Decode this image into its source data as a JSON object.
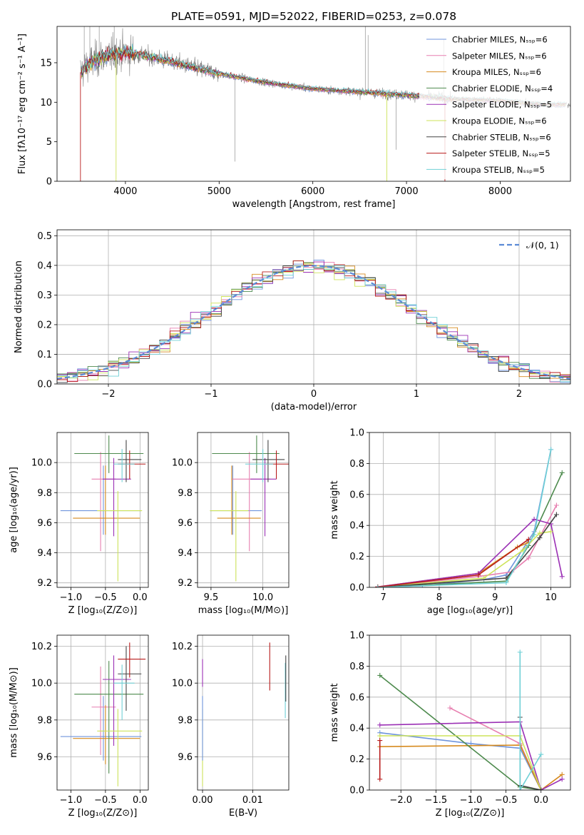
{
  "figure_title": "PLATE=0591, MJD=52022, FIBERID=0253, z=0.078",
  "colors": {
    "chab_miles": "#6f94dc",
    "salp_miles": "#e77fb0",
    "krou_miles": "#d68a1e",
    "chab_elodie": "#4d8a4d",
    "salp_elodie": "#9b30b5",
    "krou_elodie": "#cde35a",
    "chab_stelib": "#444444",
    "salp_stelib": "#b81c1c",
    "krou_stelib": "#6fd0d6",
    "data": "#808080",
    "norm": "#5a8ad6"
  },
  "chart_data": [
    {
      "id": "spectrum",
      "type": "line",
      "title": "PLATE=0591, MJD=52022, FIBERID=0253, z=0.078",
      "xlabel": "wavelength [Angstrom, rest frame]",
      "ylabel": "Flux [fλ10⁻¹⁷ erg cm⁻² s⁻¹ A⁻¹]",
      "xlim": [
        3270,
        8750
      ],
      "ylim": [
        0,
        19.6
      ],
      "xticks": [
        4000,
        5000,
        6000,
        7000,
        8000
      ],
      "yticks": [
        0,
        5,
        10,
        15
      ],
      "grid": false,
      "legend": "top-right",
      "legend_entries": [
        "Chabrier MILES, Nₛₛₚ=6",
        "Salpeter MILES, Nₛₛₚ=6",
        "Kroupa MILES, Nₛₛₚ=6",
        "Chabrier ELODIE, Nₛₛₚ=4",
        "Salpeter ELODIE, Nₛₛₚ=5",
        "Kroupa ELODIE, Nₛₛₚ=6",
        "Chabrier STELIB, Nₛₛₚ=6",
        "Salpeter STELIB, Nₛₛₚ=5",
        "Kroupa STELIB, Nₛₛₚ=5"
      ],
      "continuum": {
        "x": [
          3520,
          3600,
          3700,
          3800,
          3900,
          4000,
          4200,
          4500,
          5000,
          5500,
          6000,
          6500,
          7000,
          7500,
          8000,
          8500
        ],
        "y": [
          13.8,
          14.8,
          15.4,
          15.9,
          16.1,
          16.3,
          15.9,
          15.1,
          13.6,
          12.5,
          11.7,
          11.3,
          10.9,
          10.4,
          10.2,
          9.7
        ]
      }
    },
    {
      "id": "residual_hist",
      "type": "bar",
      "xlabel": "(data-model)/error",
      "ylabel": "Normed distribution",
      "xlim": [
        -2.5,
        2.5
      ],
      "ylim": [
        0,
        0.52
      ],
      "xticks": [
        -2,
        -1,
        0,
        1,
        2
      ],
      "yticks": [
        0.0,
        0.1,
        0.2,
        0.3,
        0.4,
        0.5
      ],
      "grid": true,
      "legend": "top-right",
      "legend_entries": [
        "𝒩(0, 1)"
      ]
    },
    {
      "id": "age_vs_z",
      "type": "scatter",
      "xlabel": "Z [log₁₀(Z/Z⊙)]",
      "ylabel": "age  [log₁₀(age/yr)]",
      "xlim": [
        -1.2,
        0.12
      ],
      "ylim": [
        9.17,
        10.2
      ],
      "xticks": [
        -1.0,
        -0.5,
        0.0
      ],
      "yticks": [
        9.2,
        9.4,
        9.6,
        9.8,
        10.0
      ],
      "grid": true,
      "points": [
        {
          "model": "chab_miles",
          "x": -0.53,
          "xerr": [
            0.62,
            0.55
          ],
          "y": 9.68,
          "yerr": [
            0.16,
            0.3
          ]
        },
        {
          "model": "salp_miles",
          "x": -0.57,
          "xerr": [
            0.13,
            0.22
          ],
          "y": 9.89,
          "yerr": [
            0.48,
            0.18
          ]
        },
        {
          "model": "krou_miles",
          "x": -0.5,
          "xerr": [
            0.47,
            0.5
          ],
          "y": 9.63,
          "yerr": [
            0.11,
            0.35
          ]
        },
        {
          "model": "chab_elodie",
          "x": -0.45,
          "xerr": [
            0.5,
            0.5
          ],
          "y": 10.06,
          "yerr": [
            0.13,
            0.12
          ]
        },
        {
          "model": "salp_elodie",
          "x": -0.38,
          "xerr": [
            0.16,
            0.25
          ],
          "y": 9.89,
          "yerr": [
            0.38,
            0.14
          ]
        },
        {
          "model": "krou_elodie",
          "x": -0.32,
          "xerr": [
            0.3,
            0.35
          ],
          "y": 9.68,
          "yerr": [
            0.47,
            0.13
          ]
        },
        {
          "model": "chab_stelib",
          "x": -0.2,
          "xerr": [
            0.12,
            0.22
          ],
          "y": 10.02,
          "yerr": [
            0.15,
            0.13
          ]
        },
        {
          "model": "salp_stelib",
          "x": -0.15,
          "xerr": [
            0.17,
            0.23
          ],
          "y": 9.99,
          "yerr": [
            0.1,
            0.09
          ]
        },
        {
          "model": "krou_stelib",
          "x": -0.26,
          "xerr": [
            0.12,
            0.18
          ],
          "y": 9.99,
          "yerr": [
            0.12,
            0.1
          ]
        }
      ]
    },
    {
      "id": "age_vs_mass",
      "type": "scatter",
      "xlabel": "mass [log₁₀(M/M⊙)]",
      "ylabel": "",
      "xlim": [
        9.37,
        10.25
      ],
      "ylim": [
        9.17,
        10.2
      ],
      "xticks": [
        9.5,
        10.0
      ],
      "yticks": [
        9.2,
        9.4,
        9.6,
        9.8,
        10.0
      ],
      "grid": true,
      "points": [
        {
          "model": "chab_miles",
          "x": 9.71,
          "xerr": [
            0.22,
            0.28
          ],
          "y": 9.68,
          "yerr": [
            0.16,
            0.3
          ]
        },
        {
          "model": "salp_miles",
          "x": 9.87,
          "xerr": [
            0.17,
            0.2
          ],
          "y": 9.89,
          "yerr": [
            0.48,
            0.18
          ]
        },
        {
          "model": "krou_miles",
          "x": 9.7,
          "xerr": [
            0.14,
            0.28
          ],
          "y": 9.63,
          "yerr": [
            0.11,
            0.35
          ]
        },
        {
          "model": "chab_elodie",
          "x": 9.94,
          "xerr": [
            0.43,
            0.22
          ],
          "y": 10.06,
          "yerr": [
            0.13,
            0.12
          ]
        },
        {
          "model": "salp_elodie",
          "x": 10.02,
          "xerr": [
            0.14,
            0.11
          ],
          "y": 9.89,
          "yerr": [
            0.38,
            0.14
          ]
        },
        {
          "model": "krou_elodie",
          "x": 9.74,
          "xerr": [
            0.25,
            0.12
          ],
          "y": 9.68,
          "yerr": [
            0.47,
            0.13
          ]
        },
        {
          "model": "chab_stelib",
          "x": 10.05,
          "xerr": [
            0.15,
            0.16
          ],
          "y": 10.02,
          "yerr": [
            0.15,
            0.13
          ]
        },
        {
          "model": "salp_stelib",
          "x": 10.13,
          "xerr": [
            0.1,
            0.12
          ],
          "y": 9.99,
          "yerr": [
            0.1,
            0.09
          ]
        },
        {
          "model": "krou_stelib",
          "x": 10.0,
          "xerr": [
            0.17,
            0.1
          ],
          "y": 9.99,
          "yerr": [
            0.12,
            0.1
          ]
        }
      ]
    },
    {
      "id": "weight_vs_age",
      "type": "line",
      "xlabel": "age  [log₁₀(age/yr)]",
      "ylabel": "mass weight",
      "xlim": [
        6.75,
        10.35
      ],
      "ylim": [
        0,
        1.0
      ],
      "xticks": [
        7,
        8,
        9,
        10
      ],
      "yticks": [
        0.0,
        0.2,
        0.4,
        0.6,
        0.8,
        1.0
      ],
      "grid": true,
      "series": [
        {
          "model": "chab_miles",
          "x": [
            6.9,
            7.7,
            8.8,
            9.2,
            9.7,
            10.0
          ],
          "y": [
            0.002,
            0.01,
            0.05,
            0.08,
            0.36,
            0.89
          ]
        },
        {
          "model": "salp_miles",
          "x": [
            6.9,
            8.7,
            9.3,
            9.6,
            10.1
          ],
          "y": [
            0.002,
            0.07,
            0.1,
            0.19,
            0.53
          ]
        },
        {
          "model": "krou_miles",
          "x": [
            6.9,
            8.7,
            9.4,
            9.6
          ],
          "y": [
            0.003,
            0.09,
            0.26,
            0.29
          ]
        },
        {
          "model": "chab_elodie",
          "x": [
            6.9,
            9.2,
            9.6,
            10.2
          ],
          "y": [
            0.0,
            0.04,
            0.27,
            0.74
          ]
        },
        {
          "model": "salp_elodie",
          "x": [
            6.9,
            8.7,
            9.7,
            10.0,
            10.2
          ],
          "y": [
            0.003,
            0.09,
            0.44,
            0.41,
            0.07
          ]
        },
        {
          "model": "krou_elodie",
          "x": [
            6.9,
            8.8,
            9.5,
            9.8,
            10.0
          ],
          "y": [
            0.002,
            0.06,
            0.24,
            0.35,
            0.36
          ]
        },
        {
          "model": "chab_stelib",
          "x": [
            6.9,
            9.2,
            9.8,
            10.1
          ],
          "y": [
            0.0,
            0.06,
            0.32,
            0.47
          ]
        },
        {
          "model": "salp_stelib",
          "x": [
            6.9,
            8.7,
            9.6
          ],
          "y": [
            0.002,
            0.08,
            0.31
          ]
        },
        {
          "model": "krou_stelib",
          "x": [
            6.9,
            9.2,
            9.7,
            10.0
          ],
          "y": [
            0.0,
            0.03,
            0.34,
            0.89
          ]
        }
      ]
    },
    {
      "id": "mass_vs_z",
      "type": "scatter",
      "xlabel": "Z [log₁₀(Z/Z⊙)]",
      "ylabel": "mass [log₁₀(M/M⊙)]",
      "xlim": [
        -1.2,
        0.12
      ],
      "ylim": [
        9.42,
        10.26
      ],
      "xticks": [
        -1.0,
        -0.5,
        0.0
      ],
      "yticks": [
        9.6,
        9.8,
        10.0,
        10.2
      ],
      "grid": true,
      "points": [
        {
          "model": "chab_miles",
          "x": -0.53,
          "xerr": [
            0.62,
            0.55
          ],
          "y": 9.71,
          "yerr": [
            0.13,
            0.22
          ]
        },
        {
          "model": "salp_miles",
          "x": -0.57,
          "xerr": [
            0.13,
            0.22
          ],
          "y": 9.87,
          "yerr": [
            0.26,
            0.22
          ]
        },
        {
          "model": "krou_miles",
          "x": -0.5,
          "xerr": [
            0.47,
            0.5
          ],
          "y": 9.7,
          "yerr": [
            0.14,
            0.18
          ]
        },
        {
          "model": "chab_elodie",
          "x": -0.45,
          "xerr": [
            0.5,
            0.5
          ],
          "y": 9.94,
          "yerr": [
            0.43,
            0.18
          ]
        },
        {
          "model": "salp_elodie",
          "x": -0.38,
          "xerr": [
            0.16,
            0.25
          ],
          "y": 10.02,
          "yerr": [
            0.36,
            0.13
          ]
        },
        {
          "model": "krou_elodie",
          "x": -0.32,
          "xerr": [
            0.3,
            0.35
          ],
          "y": 9.74,
          "yerr": [
            0.3,
            0.12
          ]
        },
        {
          "model": "chab_stelib",
          "x": -0.2,
          "xerr": [
            0.12,
            0.22
          ],
          "y": 10.05,
          "yerr": [
            0.2,
            0.15
          ]
        },
        {
          "model": "salp_stelib",
          "x": -0.15,
          "xerr": [
            0.17,
            0.23
          ],
          "y": 10.13,
          "yerr": [
            0.1,
            0.09
          ]
        },
        {
          "model": "krou_stelib",
          "x": -0.26,
          "xerr": [
            0.12,
            0.18
          ],
          "y": 10.0,
          "yerr": [
            0.2,
            0.1
          ]
        }
      ]
    },
    {
      "id": "mass_vs_ebv",
      "type": "scatter",
      "xlabel": "E(B-V)",
      "ylabel": "",
      "xlim": [
        -0.001,
        0.0172
      ],
      "ylim": [
        9.42,
        10.26
      ],
      "xticks": [
        0.0,
        0.01
      ],
      "yticks": [
        9.6,
        9.8,
        10.0,
        10.2
      ],
      "grid": true,
      "points": [
        {
          "model": "krou_elodie",
          "x": 0.0,
          "y": 9.74,
          "yerr": [
            0.3,
            0.12
          ]
        },
        {
          "model": "salp_elodie",
          "x": 0.0,
          "y": 10.04,
          "yerr": [
            0.06,
            0.09
          ]
        },
        {
          "model": "chab_miles",
          "x": 0.0,
          "y": 9.71,
          "yerr": [
            0.13,
            0.22
          ]
        },
        {
          "model": "salp_stelib",
          "x": 0.0134,
          "y": 10.09,
          "yerr": [
            0.13,
            0.13
          ]
        },
        {
          "model": "krou_stelib",
          "x": 0.0165,
          "y": 9.96,
          "yerr": [
            0.15,
            0.15
          ]
        },
        {
          "model": "chab_stelib",
          "x": 0.0166,
          "y": 10.03,
          "yerr": [
            0.13,
            0.12
          ]
        }
      ]
    },
    {
      "id": "weight_vs_z",
      "type": "line",
      "xlabel": "Z [log₁₀(Z/Z⊙)]",
      "ylabel": "mass weight",
      "xlim": [
        -2.45,
        0.42
      ],
      "ylim": [
        0,
        1.0
      ],
      "xticks": [
        -2.0,
        -1.5,
        -1.0,
        -0.5,
        0.0
      ],
      "yticks": [
        0.0,
        0.2,
        0.4,
        0.6,
        0.8,
        1.0
      ],
      "grid": true,
      "series": [
        {
          "model": "chab_miles",
          "x": [
            -2.3,
            -1.0,
            -0.3,
            0.0
          ],
          "y": [
            0.37,
            0.3,
            0.27,
            0.0
          ]
        },
        {
          "model": "salp_miles",
          "x": [
            -1.3,
            -0.3,
            0.0
          ],
          "y": [
            0.53,
            0.3,
            0.0
          ]
        },
        {
          "model": "krou_miles",
          "x": [
            -2.3,
            -0.3,
            0.0,
            0.3
          ],
          "y": [
            0.28,
            0.29,
            0.0,
            0.1
          ]
        },
        {
          "model": "chab_elodie",
          "x": [
            -2.3,
            -0.3,
            0.0
          ],
          "y": [
            0.74,
            0.02,
            0.0
          ]
        },
        {
          "model": "salp_elodie",
          "x": [
            -2.3,
            -0.3,
            0.0,
            0.3
          ],
          "y": [
            0.42,
            0.44,
            0.0,
            0.07
          ]
        },
        {
          "model": "krou_elodie",
          "x": [
            -2.3,
            -0.3,
            0.0
          ],
          "y": [
            0.35,
            0.35,
            0.0
          ]
        },
        {
          "model": "chab_stelib",
          "x": [
            -0.3,
            -0.3,
            0.0
          ],
          "y": [
            0.47,
            0.03,
            0.0
          ]
        },
        {
          "model": "salp_stelib",
          "x": [
            -2.3,
            -2.3
          ],
          "y": [
            0.32,
            0.07
          ]
        },
        {
          "model": "krou_stelib",
          "x": [
            -0.3,
            -0.3,
            0.0
          ],
          "y": [
            0.89,
            0.0,
            0.23
          ]
        }
      ]
    }
  ]
}
